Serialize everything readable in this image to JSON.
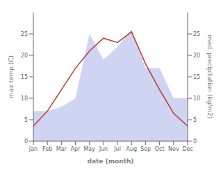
{
  "chart_data": {
    "type": "line",
    "categories": [
      "Jan",
      "Feb",
      "Mar",
      "Apr",
      "May",
      "Jun",
      "Jul",
      "Aug",
      "Sep",
      "Oct",
      "Nov",
      "Dec"
    ],
    "series": [
      {
        "type": "area",
        "color": "#c5cdf0",
        "axis": "y2",
        "values": [
          7.0,
          7.0,
          8.0,
          10.0,
          25.0,
          19.0,
          22.0,
          26.0,
          17.0,
          17.0,
          10.0,
          10.0
        ]
      },
      {
        "type": "line",
        "color": "#c0392b",
        "values": [
          3.5,
          7.0,
          12.0,
          17.0,
          21.0,
          24.0,
          23.0,
          25.5,
          18.0,
          12.0,
          6.5,
          3.5
        ]
      }
    ],
    "xlabel": "date (month)",
    "ylabel": "max temp (C)",
    "y2label": "med. precipitation (kg/m2)",
    "ylim": [
      0,
      30
    ],
    "yticks": [
      0,
      5,
      10,
      15,
      20,
      25
    ],
    "y2lim": [
      0,
      30
    ],
    "y2ticks": [
      0,
      5,
      10,
      15,
      20,
      25
    ],
    "grid": false
  }
}
